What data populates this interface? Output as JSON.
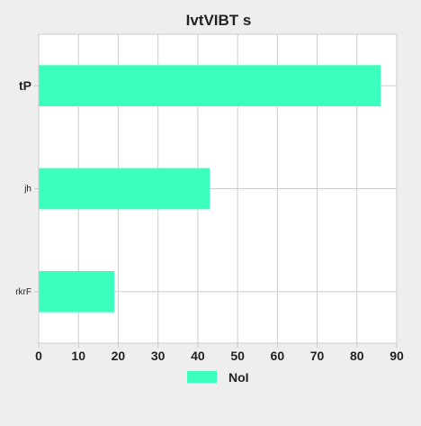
{
  "chart_data": {
    "type": "bar",
    "orientation": "horizontal",
    "title": "IvtVIBT s",
    "categories": [
      "tP",
      "jh",
      "rkrF"
    ],
    "category_label_style": [
      "bold-large",
      "small",
      "small"
    ],
    "series": [
      {
        "name": "NoI",
        "values": [
          86,
          43,
          19
        ]
      }
    ],
    "xlim": [
      0,
      90
    ],
    "xticks": [
      0,
      10,
      20,
      30,
      40,
      50,
      60,
      70,
      80,
      90
    ],
    "grid": true,
    "legend_position": "bottom-center",
    "colors": {
      "bar": "#3dffbd",
      "background": "#eeeeee",
      "plot_background": "#ffffff",
      "grid": "#cccccc"
    }
  }
}
